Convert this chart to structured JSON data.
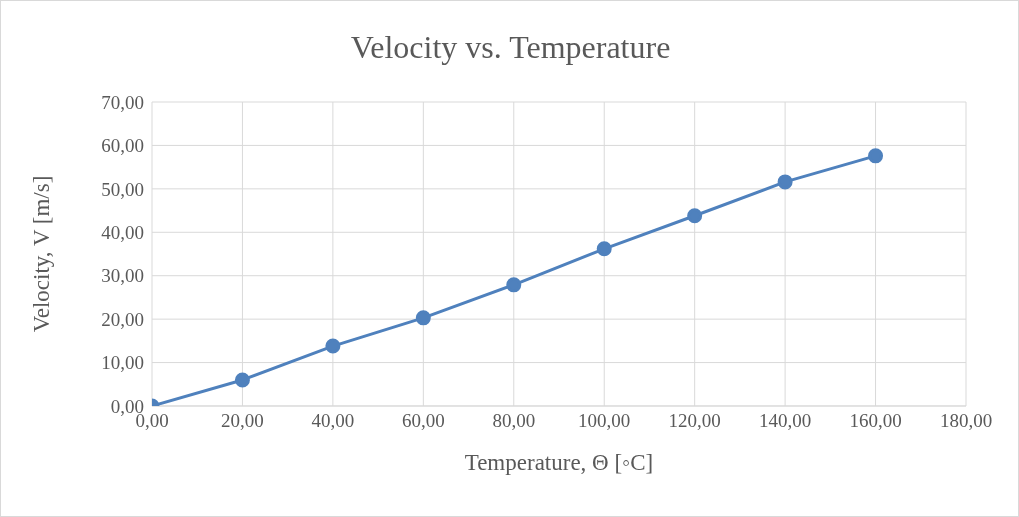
{
  "chart_data": {
    "type": "line",
    "title": "Velocity vs. Temperature",
    "xlabel": "Temperature, Θ [◦C]",
    "ylabel": "Velocity,  V [m/s]",
    "x": [
      0,
      20,
      40,
      60,
      80,
      100,
      120,
      140,
      160
    ],
    "series": [
      {
        "color": "#4f81bd",
        "values": [
          0,
          6.0,
          13.8,
          20.3,
          27.9,
          36.2,
          43.8,
          51.6,
          57.6
        ]
      }
    ],
    "xlim": [
      0,
      180
    ],
    "ylim": [
      0,
      70
    ],
    "xticks": [
      {
        "value": 0,
        "label": "0,00"
      },
      {
        "value": 20,
        "label": "20,00"
      },
      {
        "value": 40,
        "label": "40,00"
      },
      {
        "value": 60,
        "label": "60,00"
      },
      {
        "value": 80,
        "label": "80,00"
      },
      {
        "value": 100,
        "label": "100,00"
      },
      {
        "value": 120,
        "label": "120,00"
      },
      {
        "value": 140,
        "label": "140,00"
      },
      {
        "value": 160,
        "label": "160,00"
      },
      {
        "value": 180,
        "label": "180,00"
      }
    ],
    "yticks": [
      {
        "value": 0,
        "label": "0,00"
      },
      {
        "value": 10,
        "label": "10,00"
      },
      {
        "value": 20,
        "label": "20,00"
      },
      {
        "value": 30,
        "label": "30,00"
      },
      {
        "value": 40,
        "label": "40,00"
      },
      {
        "value": 50,
        "label": "50,00"
      },
      {
        "value": 60,
        "label": "60,00"
      },
      {
        "value": 70,
        "label": "70,00"
      }
    ],
    "grid": true,
    "marker": "circle",
    "line_style": "solid",
    "legend": false
  }
}
